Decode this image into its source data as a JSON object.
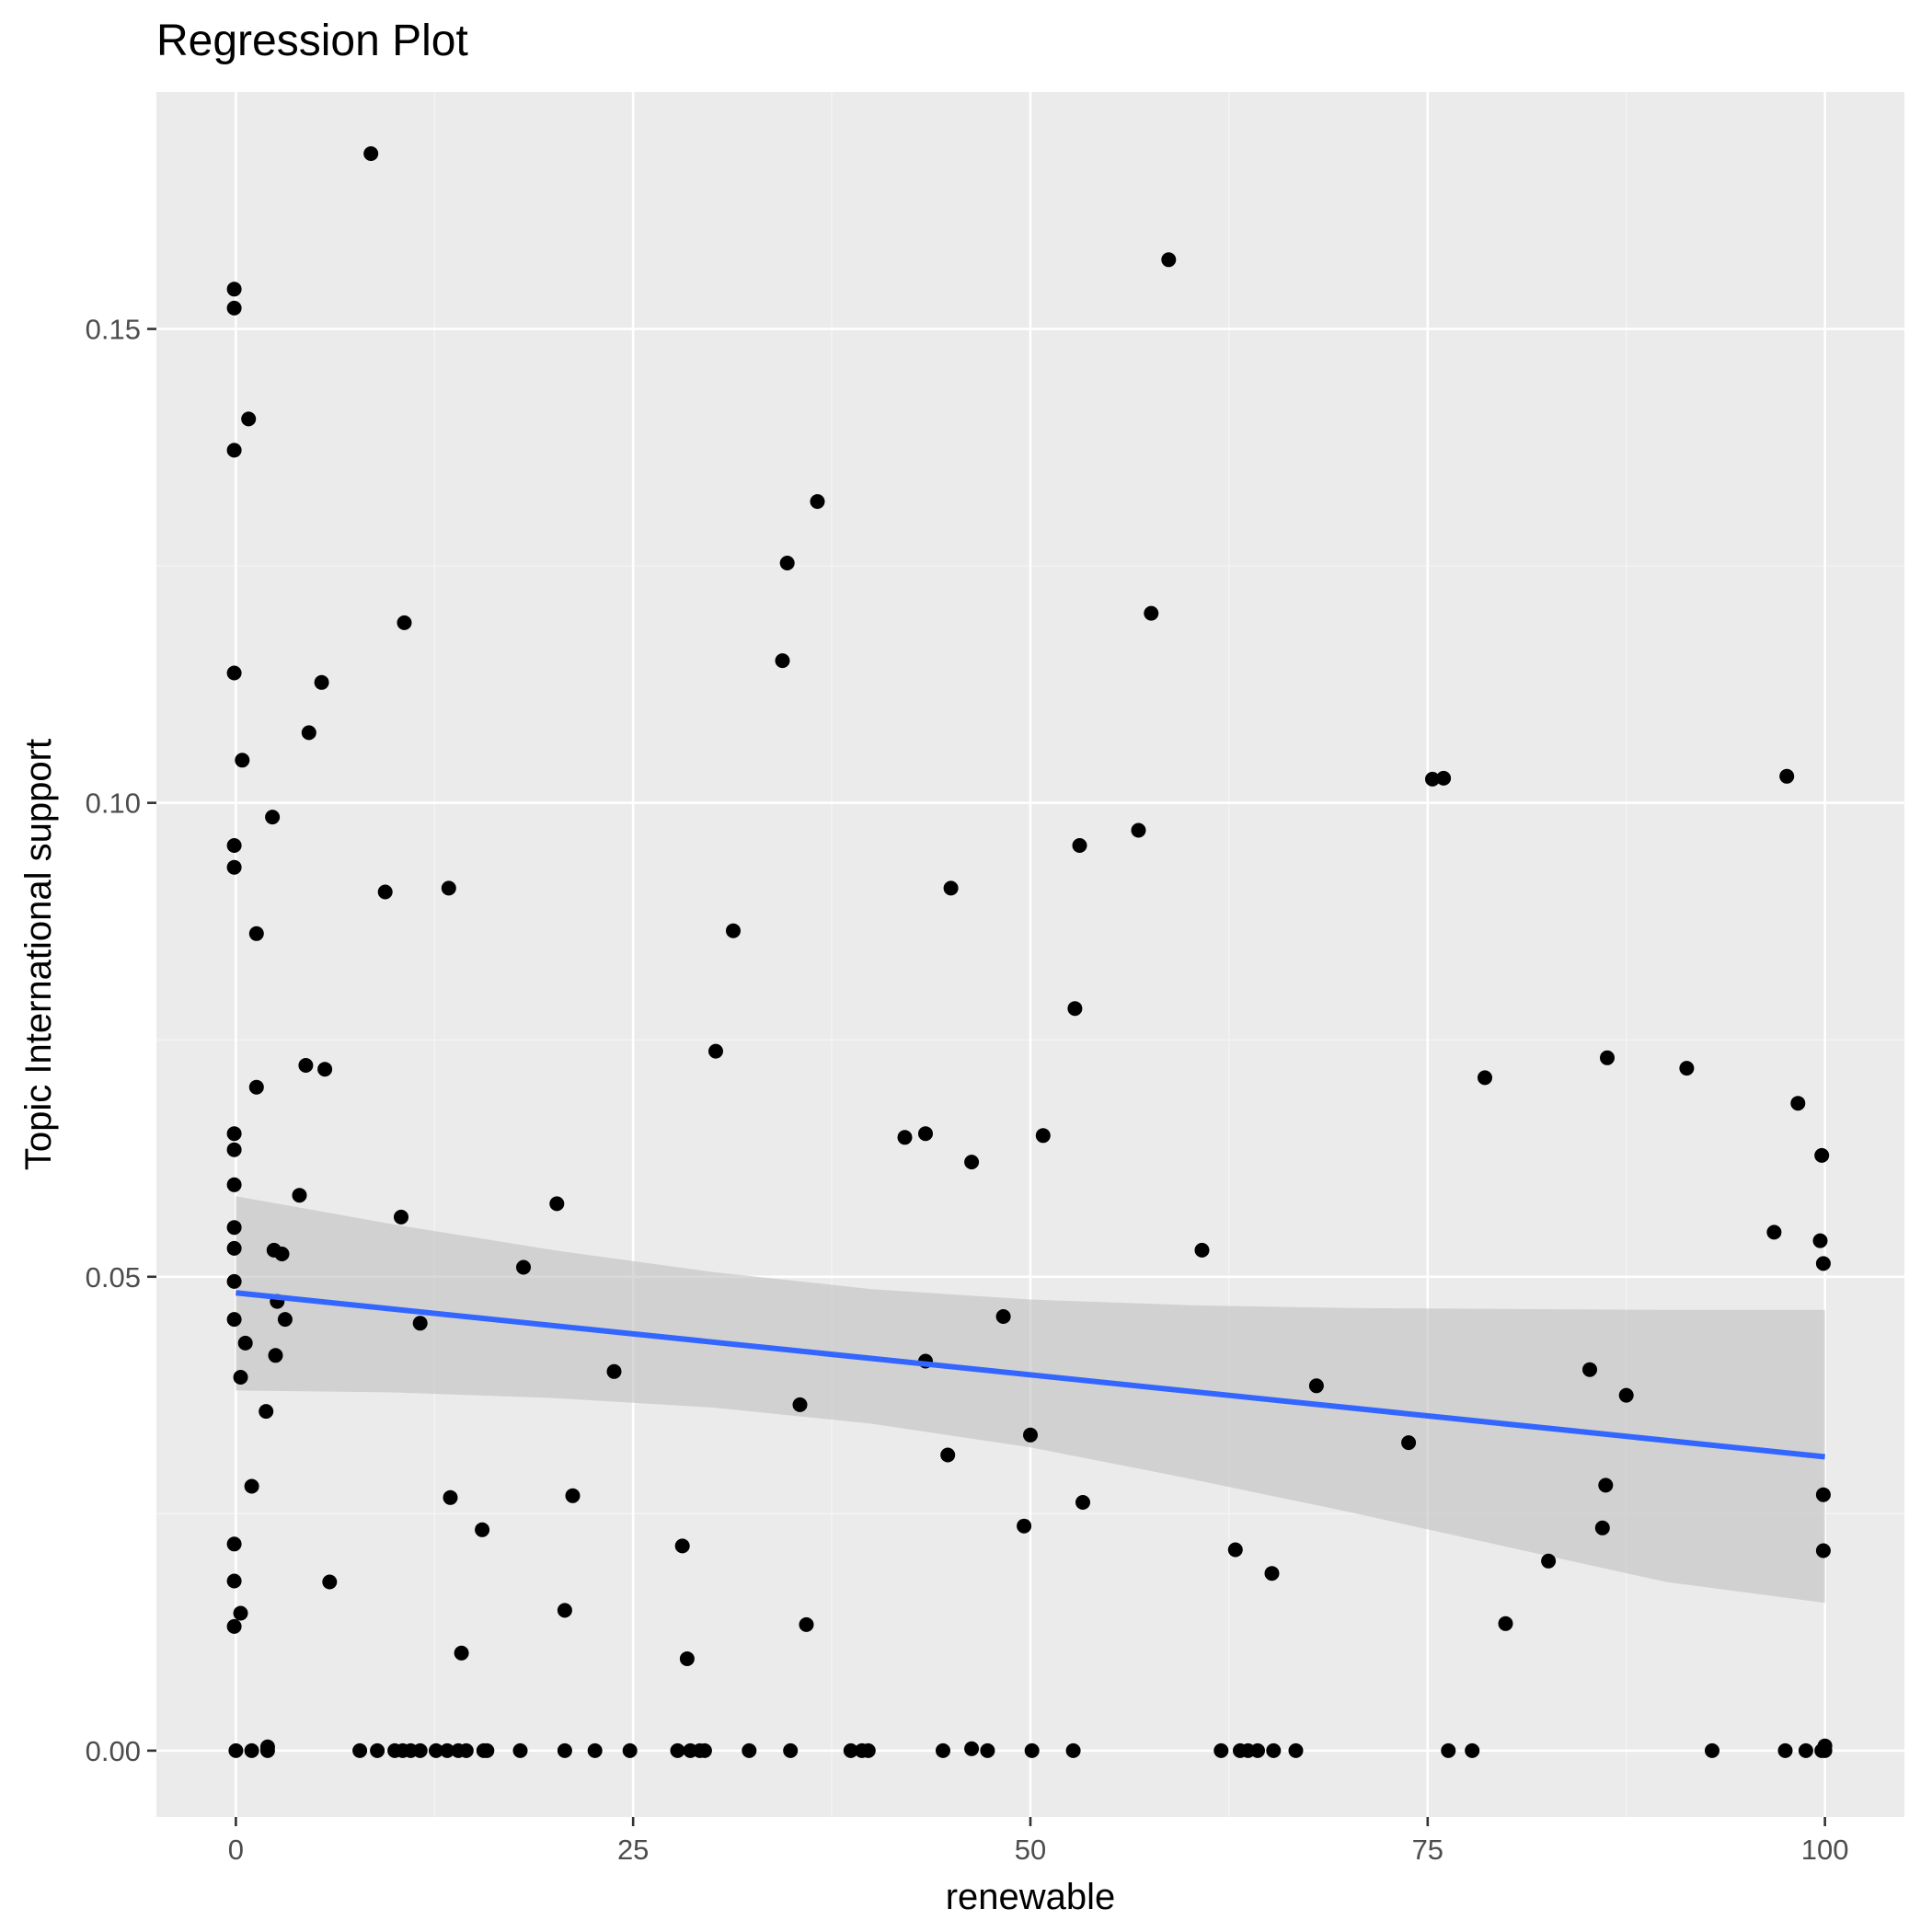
{
  "chart_data": {
    "type": "scatter",
    "title": "Regression Plot",
    "xlabel": "renewable",
    "ylabel": "Topic International support",
    "xlim": [
      -5,
      105
    ],
    "ylim": [
      -0.007,
      0.175
    ],
    "x_ticks": [
      0,
      25,
      50,
      75,
      100
    ],
    "x_tick_labels": [
      "0",
      "25",
      "50",
      "75",
      "100"
    ],
    "y_ticks": [
      0.0,
      0.05,
      0.1,
      0.15
    ],
    "y_tick_labels": [
      "0.00",
      "0.05",
      "0.10",
      "0.15"
    ],
    "grid": true,
    "legend": "none",
    "colors": {
      "panel_background": "#ebebeb",
      "grid_major": "#ffffff",
      "grid_minor": "#f5f5f5",
      "points": "#000000",
      "regression_line": "#3366ff",
      "confidence_band": "#bfbfbf",
      "tick_label": "#4d4d4d",
      "tick_mark": "#333333"
    },
    "regression": {
      "x_start": 0,
      "x_end": 100,
      "y_start": 0.0483,
      "y_end": 0.031,
      "band": [
        {
          "x": 0,
          "lower": 0.038,
          "upper": 0.0585
        },
        {
          "x": 10,
          "lower": 0.0378,
          "upper": 0.0555
        },
        {
          "x": 20,
          "lower": 0.0372,
          "upper": 0.0528
        },
        {
          "x": 30,
          "lower": 0.0362,
          "upper": 0.0505
        },
        {
          "x": 40,
          "lower": 0.0345,
          "upper": 0.0487
        },
        {
          "x": 50,
          "lower": 0.032,
          "upper": 0.0476
        },
        {
          "x": 60,
          "lower": 0.0287,
          "upper": 0.047
        },
        {
          "x": 70,
          "lower": 0.0252,
          "upper": 0.0467
        },
        {
          "x": 80,
          "lower": 0.0215,
          "upper": 0.0466
        },
        {
          "x": 90,
          "lower": 0.0178,
          "upper": 0.0465
        },
        {
          "x": 100,
          "lower": 0.0156,
          "upper": 0.0465
        }
      ]
    },
    "points": [
      {
        "x": -0.1,
        "y": 0.1542
      },
      {
        "x": -0.1,
        "y": 0.1522
      },
      {
        "x": -0.1,
        "y": 0.1372
      },
      {
        "x": 0.8,
        "y": 0.1405
      },
      {
        "x": -0.1,
        "y": 0.1137
      },
      {
        "x": 0.4,
        "y": 0.1045
      },
      {
        "x": -0.1,
        "y": 0.0955
      },
      {
        "x": -0.1,
        "y": 0.0932
      },
      {
        "x": 2.3,
        "y": 0.0985
      },
      {
        "x": 1.3,
        "y": 0.0862
      },
      {
        "x": -0.1,
        "y": 0.0651
      },
      {
        "x": -0.1,
        "y": 0.0634
      },
      {
        "x": 1.3,
        "y": 0.07
      },
      {
        "x": -0.1,
        "y": 0.0597
      },
      {
        "x": -0.1,
        "y": 0.0552
      },
      {
        "x": -0.1,
        "y": 0.053
      },
      {
        "x": -0.1,
        "y": 0.0495
      },
      {
        "x": -0.1,
        "y": 0.0455
      },
      {
        "x": 0.6,
        "y": 0.043
      },
      {
        "x": 0.3,
        "y": 0.0394
      },
      {
        "x": 2.4,
        "y": 0.0528
      },
      {
        "x": 2.9,
        "y": 0.0524
      },
      {
        "x": 2.6,
        "y": 0.0474
      },
      {
        "x": 3.1,
        "y": 0.0455
      },
      {
        "x": 2.5,
        "y": 0.0417
      },
      {
        "x": 1.9,
        "y": 0.0358
      },
      {
        "x": 1.0,
        "y": 0.0279
      },
      {
        "x": -0.1,
        "y": 0.0218
      },
      {
        "x": -0.1,
        "y": 0.0179
      },
      {
        "x": 0.3,
        "y": 0.0145
      },
      {
        "x": -0.1,
        "y": 0.0131
      },
      {
        "x": 8.5,
        "y": 0.1685
      },
      {
        "x": 5.4,
        "y": 0.1127
      },
      {
        "x": 4.6,
        "y": 0.1074
      },
      {
        "x": 10.6,
        "y": 0.119
      },
      {
        "x": 9.4,
        "y": 0.0906
      },
      {
        "x": 13.4,
        "y": 0.091
      },
      {
        "x": 4.4,
        "y": 0.0723
      },
      {
        "x": 5.6,
        "y": 0.0719
      },
      {
        "x": 4.0,
        "y": 0.0586
      },
      {
        "x": 10.4,
        "y": 0.0563
      },
      {
        "x": 11.6,
        "y": 0.0451
      },
      {
        "x": 18.1,
        "y": 0.051
      },
      {
        "x": 20.2,
        "y": 0.0577
      },
      {
        "x": 5.9,
        "y": 0.0178
      },
      {
        "x": 13.5,
        "y": 0.0267
      },
      {
        "x": 15.5,
        "y": 0.0233
      },
      {
        "x": 14.2,
        "y": 0.0103
      },
      {
        "x": 21.2,
        "y": 0.0269
      },
      {
        "x": 20.7,
        "y": 0.0148
      },
      {
        "x": 23.8,
        "y": 0.04
      },
      {
        "x": 28.1,
        "y": 0.0216
      },
      {
        "x": 28.4,
        "y": 0.0097
      },
      {
        "x": 30.2,
        "y": 0.0738
      },
      {
        "x": 31.3,
        "y": 0.0865
      },
      {
        "x": 34.4,
        "y": 0.115
      },
      {
        "x": 34.7,
        "y": 0.1253
      },
      {
        "x": 36.6,
        "y": 0.1318
      },
      {
        "x": 35.5,
        "y": 0.0365
      },
      {
        "x": 35.9,
        "y": 0.0133
      },
      {
        "x": 42.1,
        "y": 0.0647
      },
      {
        "x": 43.4,
        "y": 0.0651
      },
      {
        "x": 43.4,
        "y": 0.0411
      },
      {
        "x": 46.3,
        "y": 0.0621
      },
      {
        "x": 45.0,
        "y": 0.091
      },
      {
        "x": 44.8,
        "y": 0.0312
      },
      {
        "x": 48.3,
        "y": 0.0458
      },
      {
        "x": 50.0,
        "y": 0.0333
      },
      {
        "x": 49.6,
        "y": 0.0237
      },
      {
        "x": 50.8,
        "y": 0.0649
      },
      {
        "x": 52.8,
        "y": 0.0783
      },
      {
        "x": 53.1,
        "y": 0.0955
      },
      {
        "x": 53.3,
        "y": 0.0262
      },
      {
        "x": 56.8,
        "y": 0.0971
      },
      {
        "x": 57.6,
        "y": 0.12
      },
      {
        "x": 58.7,
        "y": 0.1573
      },
      {
        "x": 60.8,
        "y": 0.0528
      },
      {
        "x": 62.9,
        "y": 0.0212
      },
      {
        "x": 65.2,
        "y": 0.0187
      },
      {
        "x": 68.0,
        "y": 0.0385
      },
      {
        "x": 73.8,
        "y": 0.0325
      },
      {
        "x": 75.3,
        "y": 0.1025
      },
      {
        "x": 76.0,
        "y": 0.1026
      },
      {
        "x": 78.6,
        "y": 0.071
      },
      {
        "x": 79.9,
        "y": 0.0134
      },
      {
        "x": 82.6,
        "y": 0.02
      },
      {
        "x": 85.2,
        "y": 0.0402
      },
      {
        "x": 86.2,
        "y": 0.028
      },
      {
        "x": 86.0,
        "y": 0.0235
      },
      {
        "x": 86.3,
        "y": 0.0731
      },
      {
        "x": 87.5,
        "y": 0.0375
      },
      {
        "x": 91.3,
        "y": 0.072
      },
      {
        "x": 96.8,
        "y": 0.0547
      },
      {
        "x": 97.6,
        "y": 0.1028
      },
      {
        "x": 98.3,
        "y": 0.0683
      },
      {
        "x": 99.8,
        "y": 0.0628
      },
      {
        "x": 99.7,
        "y": 0.0538
      },
      {
        "x": 99.9,
        "y": 0.0514
      },
      {
        "x": 99.9,
        "y": 0.027
      },
      {
        "x": 99.9,
        "y": 0.0211
      },
      {
        "x": 0.0,
        "y": 0.0
      },
      {
        "x": 1.0,
        "y": 0.0
      },
      {
        "x": 2.0,
        "y": 0.0
      },
      {
        "x": 2.0,
        "y": 0.0004
      },
      {
        "x": 7.8,
        "y": 0.0
      },
      {
        "x": 8.9,
        "y": 0.0
      },
      {
        "x": 10.0,
        "y": 0.0
      },
      {
        "x": 10.5,
        "y": 0.0
      },
      {
        "x": 11.0,
        "y": 0.0
      },
      {
        "x": 11.6,
        "y": 0.0
      },
      {
        "x": 12.6,
        "y": 0.0
      },
      {
        "x": 13.3,
        "y": 0.0
      },
      {
        "x": 14.0,
        "y": 0.0
      },
      {
        "x": 14.5,
        "y": 0.0
      },
      {
        "x": 15.6,
        "y": 0.0
      },
      {
        "x": 15.8,
        "y": 0.0
      },
      {
        "x": 17.9,
        "y": 0.0
      },
      {
        "x": 20.7,
        "y": 0.0
      },
      {
        "x": 22.6,
        "y": 0.0
      },
      {
        "x": 24.8,
        "y": 0.0
      },
      {
        "x": 27.8,
        "y": 0.0
      },
      {
        "x": 28.6,
        "y": 0.0
      },
      {
        "x": 29.2,
        "y": 0.0
      },
      {
        "x": 29.5,
        "y": 0.0
      },
      {
        "x": 32.3,
        "y": 0.0
      },
      {
        "x": 34.9,
        "y": 0.0
      },
      {
        "x": 38.7,
        "y": 0.0
      },
      {
        "x": 39.4,
        "y": 0.0
      },
      {
        "x": 39.8,
        "y": 0.0
      },
      {
        "x": 44.5,
        "y": 0.0
      },
      {
        "x": 46.3,
        "y": 0.0002
      },
      {
        "x": 47.3,
        "y": 0.0
      },
      {
        "x": 50.1,
        "y": 0.0
      },
      {
        "x": 52.7,
        "y": 0.0
      },
      {
        "x": 62.0,
        "y": 0.0
      },
      {
        "x": 63.2,
        "y": 0.0
      },
      {
        "x": 63.7,
        "y": 0.0
      },
      {
        "x": 64.3,
        "y": 0.0
      },
      {
        "x": 65.3,
        "y": 0.0
      },
      {
        "x": 66.7,
        "y": 0.0
      },
      {
        "x": 76.3,
        "y": 0.0
      },
      {
        "x": 77.8,
        "y": 0.0
      },
      {
        "x": 92.9,
        "y": 0.0
      },
      {
        "x": 97.5,
        "y": 0.0
      },
      {
        "x": 98.8,
        "y": 0.0
      },
      {
        "x": 99.8,
        "y": 0.0
      },
      {
        "x": 100.0,
        "y": 0.0005
      },
      {
        "x": 100.0,
        "y": 0.0
      }
    ]
  }
}
